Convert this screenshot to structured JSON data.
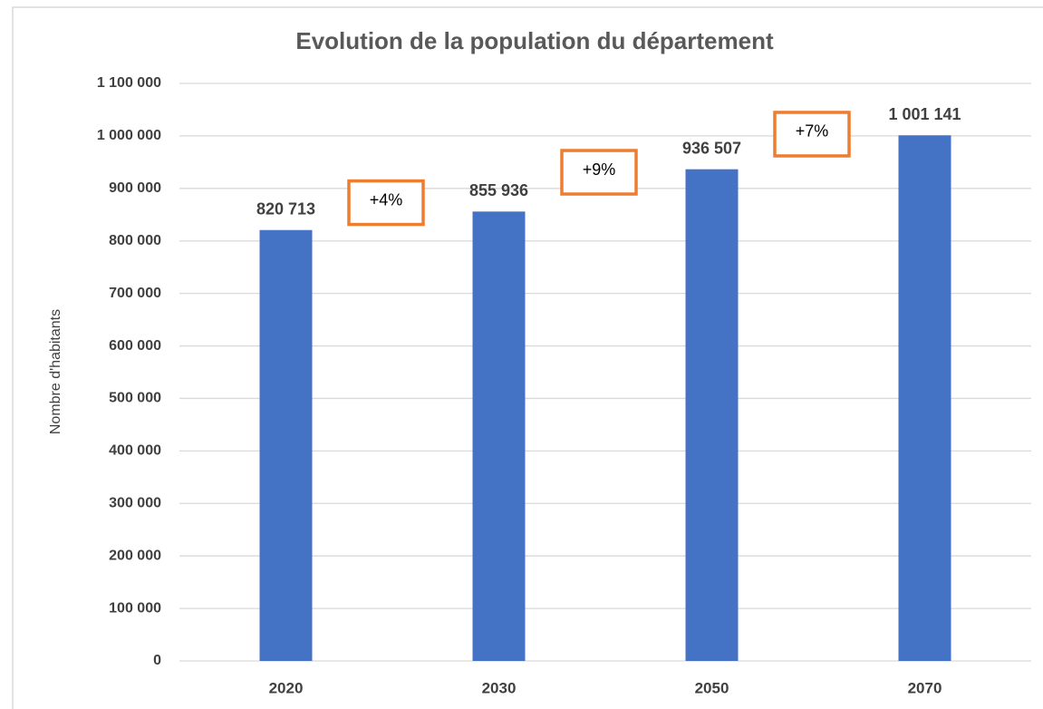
{
  "chart_data": {
    "type": "bar",
    "title": "Evolution de la population du département",
    "y_label": "Nombre d'habitants",
    "categories": [
      "2020",
      "2030",
      "2050",
      "2070"
    ],
    "values": [
      820713,
      855936,
      936507,
      1001141
    ],
    "value_labels": [
      "820 713",
      "855 936",
      "936 507",
      "1 001 141"
    ],
    "color": "#4472c4",
    "annotations": [
      "+4%",
      "+9%",
      "+7%"
    ],
    "annotation_color": "#ed7d31",
    "ylim": [
      0,
      1100000
    ],
    "yticks": [
      0,
      {
        "value": 100000,
        "label": "100 000"
      },
      {
        "value": 200000,
        "label": "200 000"
      },
      {
        "value": 300000,
        "label": "300 000"
      },
      {
        "value": 400000,
        "label": "400 000"
      },
      {
        "value": 500000,
        "label": "500 000"
      },
      {
        "value": 600000,
        "label": "600 000"
      },
      {
        "value": 700000,
        "label": "700 000"
      },
      {
        "value": 800000,
        "label": "800 000"
      },
      {
        "value": 900000,
        "label": "900 000"
      },
      {
        "value": 1000000,
        "label": "1 000 000"
      },
      {
        "value": 1100000,
        "label": "1 100 000"
      }
    ],
    "grid": true
  }
}
